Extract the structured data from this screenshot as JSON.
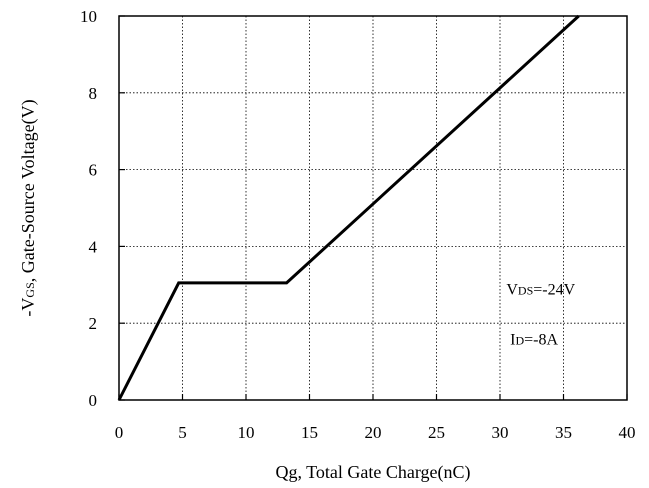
{
  "chart_data": {
    "type": "line",
    "title": "",
    "xlabel": "Qg, Total Gate Charge(nC)",
    "ylabel_prefix": "-V",
    "ylabel_sub": "GS",
    "ylabel_rest": ", Gate-Source Voltage(V)",
    "xlim": [
      0,
      40
    ],
    "ylim": [
      0,
      10
    ],
    "x_ticks": [
      0,
      5,
      10,
      15,
      20,
      25,
      30,
      35,
      40
    ],
    "y_ticks": [
      0,
      2,
      4,
      6,
      8,
      10
    ],
    "grid": true,
    "series": [
      {
        "x": [
          0,
          4.7,
          13.2,
          36.2
        ],
        "y": [
          0,
          3.05,
          3.05,
          10
        ]
      }
    ],
    "annotations": [
      {
        "main": "V",
        "sub": "DS",
        "rest": "=-24V",
        "x": 30.5,
        "y": 2.75
      },
      {
        "main": "I",
        "sub": "D",
        "rest": "=-8A",
        "x": 30.8,
        "y": 1.45
      }
    ]
  }
}
